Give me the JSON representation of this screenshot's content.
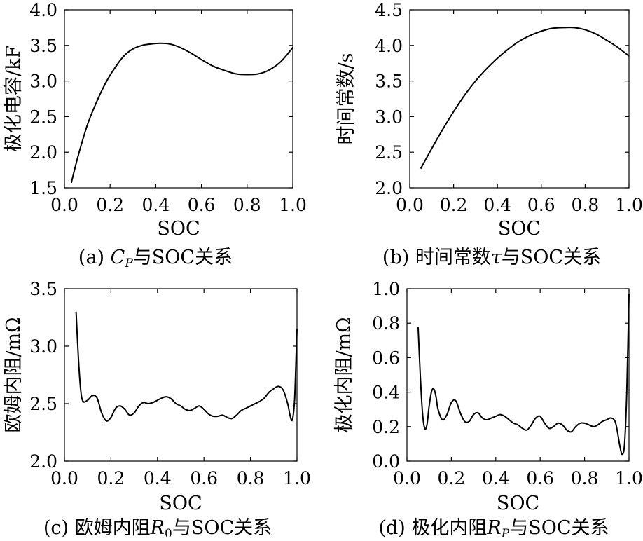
{
  "chart_data": [
    {
      "type": "line",
      "xlabel": "SOC",
      "ylabel": "极化电容/kF",
      "caption": "(a) CP与SOC关系",
      "caption_parts": {
        "pre": "(a) ",
        "sym": "C",
        "sub": "P",
        "post": "与SOC关系"
      },
      "xlim": [
        0,
        1.0
      ],
      "ylim": [
        1.5,
        4.0
      ],
      "xticks": [
        "0.0",
        "0.2",
        "0.4",
        "0.6",
        "0.8",
        "1.0"
      ],
      "yticks": [
        "1.5",
        "2.0",
        "2.5",
        "3.0",
        "3.5",
        "4.0"
      ],
      "grid": false,
      "series": [
        {
          "x": [
            0.03,
            0.06,
            0.1,
            0.14,
            0.18,
            0.22,
            0.26,
            0.3,
            0.34,
            0.38,
            0.42,
            0.46,
            0.5,
            0.55,
            0.6,
            0.65,
            0.7,
            0.75,
            0.8,
            0.85,
            0.9,
            0.95,
            1.0
          ],
          "y": [
            1.57,
            1.95,
            2.38,
            2.7,
            2.97,
            3.18,
            3.35,
            3.45,
            3.5,
            3.52,
            3.53,
            3.52,
            3.48,
            3.4,
            3.3,
            3.21,
            3.15,
            3.1,
            3.09,
            3.1,
            3.16,
            3.28,
            3.47
          ]
        }
      ]
    },
    {
      "type": "line",
      "xlabel": "SOC",
      "ylabel": "时间常数/s",
      "caption": "(b) 时间常数τ与SOC关系",
      "caption_parts": {
        "pre": "(b) 时间常数",
        "sym": "τ",
        "sub": "",
        "post": "与SOC关系"
      },
      "xlim": [
        0,
        1.0
      ],
      "ylim": [
        2.0,
        4.5
      ],
      "xticks": [
        "0.0",
        "0.2",
        "0.4",
        "0.6",
        "0.8",
        "1.0"
      ],
      "yticks": [
        "2.0",
        "2.5",
        "3.0",
        "3.5",
        "4.0",
        "4.5"
      ],
      "grid": false,
      "series": [
        {
          "x": [
            0.05,
            0.1,
            0.15,
            0.2,
            0.25,
            0.3,
            0.35,
            0.4,
            0.45,
            0.5,
            0.55,
            0.6,
            0.65,
            0.7,
            0.75,
            0.8,
            0.85,
            0.9,
            0.95,
            1.0
          ],
          "y": [
            2.27,
            2.55,
            2.82,
            3.07,
            3.3,
            3.5,
            3.67,
            3.82,
            3.95,
            4.06,
            4.14,
            4.2,
            4.24,
            4.25,
            4.25,
            4.22,
            4.16,
            4.07,
            3.97,
            3.85
          ]
        }
      ]
    },
    {
      "type": "line",
      "xlabel": "SOC",
      "ylabel": "欧姆内阻/mΩ",
      "caption": "(c) 欧姆内阻R0与SOC关系",
      "caption_parts": {
        "pre": "(c) 欧姆内阻",
        "sym": "R",
        "sub": "0",
        "post": "与SOC关系"
      },
      "xlim": [
        0,
        1.0
      ],
      "ylim": [
        2.0,
        3.5
      ],
      "xticks": [
        "0.0",
        "0.2",
        "0.4",
        "0.6",
        "0.8",
        "1.0"
      ],
      "yticks": [
        "2.0",
        "2.5",
        "3.0",
        "3.5"
      ],
      "grid": false,
      "series": [
        {
          "x": [
            0.05,
            0.06,
            0.07,
            0.08,
            0.1,
            0.12,
            0.14,
            0.16,
            0.18,
            0.2,
            0.22,
            0.24,
            0.26,
            0.28,
            0.3,
            0.32,
            0.34,
            0.36,
            0.38,
            0.4,
            0.42,
            0.44,
            0.46,
            0.48,
            0.5,
            0.52,
            0.54,
            0.56,
            0.58,
            0.6,
            0.62,
            0.64,
            0.66,
            0.68,
            0.7,
            0.72,
            0.74,
            0.76,
            0.78,
            0.8,
            0.82,
            0.84,
            0.86,
            0.88,
            0.9,
            0.92,
            0.94,
            0.96,
            0.97,
            0.98,
            0.99,
            1.0
          ],
          "y": [
            3.3,
            2.9,
            2.62,
            2.52,
            2.53,
            2.57,
            2.55,
            2.42,
            2.35,
            2.38,
            2.46,
            2.48,
            2.45,
            2.4,
            2.42,
            2.48,
            2.51,
            2.5,
            2.51,
            2.53,
            2.55,
            2.56,
            2.54,
            2.5,
            2.48,
            2.45,
            2.44,
            2.46,
            2.48,
            2.45,
            2.41,
            2.39,
            2.39,
            2.4,
            2.38,
            2.37,
            2.4,
            2.44,
            2.46,
            2.48,
            2.5,
            2.52,
            2.55,
            2.6,
            2.63,
            2.65,
            2.62,
            2.5,
            2.4,
            2.36,
            2.55,
            3.15
          ]
        }
      ]
    },
    {
      "type": "line",
      "xlabel": "SOC",
      "ylabel": "极化内阻/mΩ",
      "caption": "(d) 极化内阻RP与SOC关系",
      "caption_parts": {
        "pre": "(d) 极化内阻",
        "sym": "R",
        "sub": "P",
        "post": "与SOC关系"
      },
      "xlim": [
        0,
        1.0
      ],
      "ylim": [
        0.0,
        1.0
      ],
      "xticks": [
        "0.0",
        "0.2",
        "0.4",
        "0.6",
        "0.8",
        "1.0"
      ],
      "yticks": [
        "0.0",
        "0.2",
        "0.4",
        "0.6",
        "0.8",
        "1.0"
      ],
      "grid": false,
      "series": [
        {
          "x": [
            0.05,
            0.06,
            0.07,
            0.08,
            0.09,
            0.1,
            0.11,
            0.12,
            0.13,
            0.14,
            0.16,
            0.18,
            0.2,
            0.22,
            0.24,
            0.26,
            0.28,
            0.3,
            0.32,
            0.34,
            0.36,
            0.38,
            0.4,
            0.42,
            0.44,
            0.46,
            0.48,
            0.5,
            0.52,
            0.54,
            0.56,
            0.58,
            0.6,
            0.62,
            0.64,
            0.66,
            0.68,
            0.7,
            0.72,
            0.74,
            0.76,
            0.78,
            0.8,
            0.82,
            0.84,
            0.86,
            0.88,
            0.9,
            0.92,
            0.94,
            0.96,
            0.97,
            0.98,
            0.99,
            1.0
          ],
          "y": [
            0.78,
            0.5,
            0.28,
            0.19,
            0.21,
            0.32,
            0.4,
            0.42,
            0.38,
            0.3,
            0.24,
            0.27,
            0.34,
            0.35,
            0.28,
            0.23,
            0.23,
            0.27,
            0.28,
            0.25,
            0.24,
            0.25,
            0.26,
            0.27,
            0.26,
            0.24,
            0.22,
            0.21,
            0.19,
            0.18,
            0.21,
            0.25,
            0.26,
            0.22,
            0.19,
            0.2,
            0.22,
            0.21,
            0.18,
            0.17,
            0.2,
            0.22,
            0.22,
            0.21,
            0.2,
            0.21,
            0.23,
            0.24,
            0.25,
            0.22,
            0.08,
            0.04,
            0.1,
            0.4,
            0.97
          ]
        }
      ]
    }
  ]
}
